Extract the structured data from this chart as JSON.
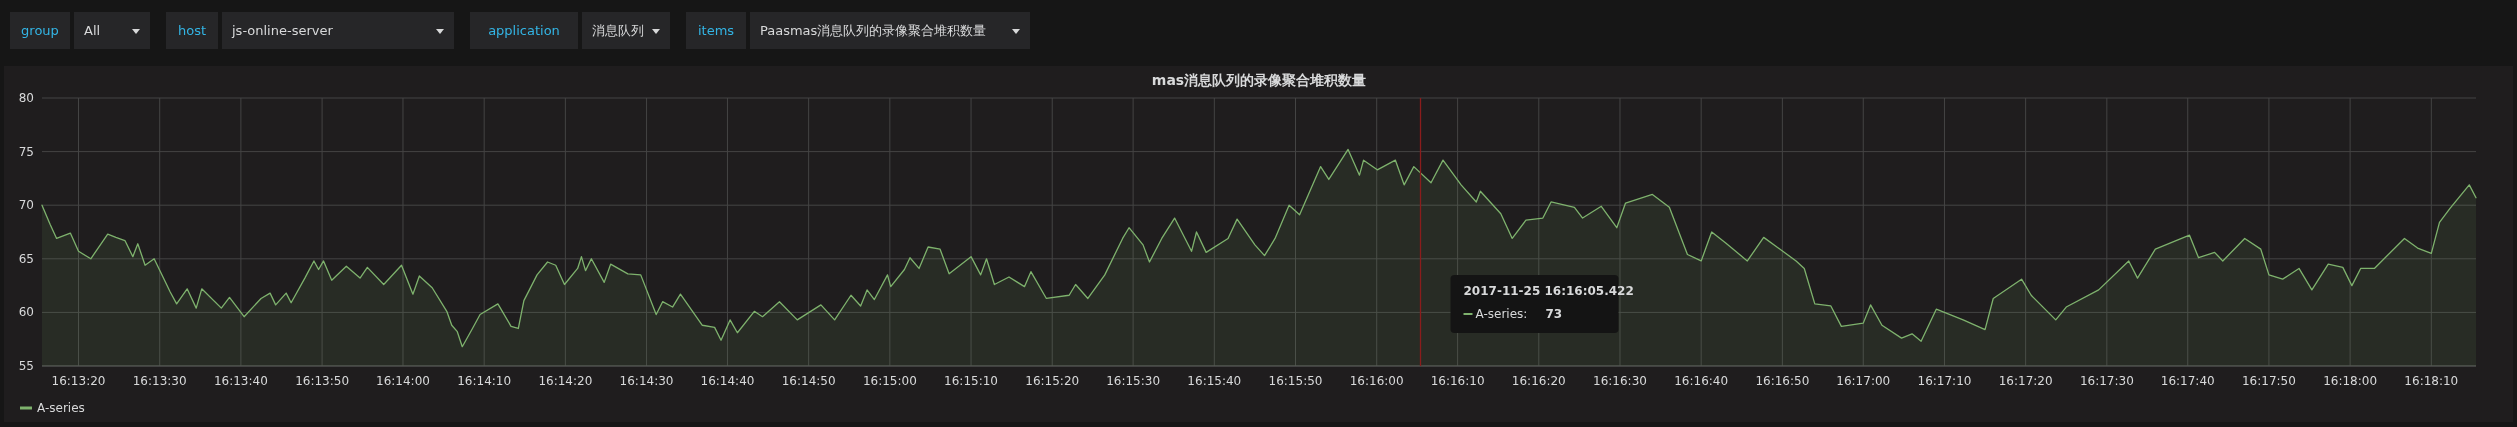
{
  "chart_data": {
    "type": "area",
    "title": "mas消息队列的录像聚合堆积数量",
    "annotations": [
      "group",
      "All",
      "host",
      "js-online-server",
      "application",
      "消息队列",
      "items",
      "Paasmas消息队列的录像聚合堆积数量",
      "2017-11-25 16:16:05.422",
      "A-series:",
      "73"
    ],
    "xlim": [
      16.22097,
      16.30431
    ],
    "xticks": [
      {
        "value": 16.22222,
        "label": "16:13:20"
      },
      {
        "value": 16.225,
        "label": "16:13:30"
      },
      {
        "value": 16.22778,
        "label": "16:13:40"
      },
      {
        "value": 16.23056,
        "label": "16:13:50"
      },
      {
        "value": 16.23333,
        "label": "16:14:00"
      },
      {
        "value": 16.23611,
        "label": "16:14:10"
      },
      {
        "value": 16.23889,
        "label": "16:14:20"
      },
      {
        "value": 16.24167,
        "label": "16:14:30"
      },
      {
        "value": 16.24444,
        "label": "16:14:40"
      },
      {
        "value": 16.24722,
        "label": "16:14:50"
      },
      {
        "value": 16.25,
        "label": "16:15:00"
      },
      {
        "value": 16.25278,
        "label": "16:15:10"
      },
      {
        "value": 16.25556,
        "label": "16:15:20"
      },
      {
        "value": 16.25833,
        "label": "16:15:30"
      },
      {
        "value": 16.26111,
        "label": "16:15:40"
      },
      {
        "value": 16.26389,
        "label": "16:15:50"
      },
      {
        "value": 16.26667,
        "label": "16:16:00"
      },
      {
        "value": 16.26944,
        "label": "16:16:10"
      },
      {
        "value": 16.27222,
        "label": "16:16:20"
      },
      {
        "value": 16.275,
        "label": "16:16:30"
      },
      {
        "value": 16.27778,
        "label": "16:16:40"
      },
      {
        "value": 16.28056,
        "label": "16:16:50"
      },
      {
        "value": 16.28333,
        "label": "16:17:00"
      },
      {
        "value": 16.28611,
        "label": "16:17:10"
      },
      {
        "value": 16.28889,
        "label": "16:17:20"
      },
      {
        "value": 16.29167,
        "label": "16:17:30"
      },
      {
        "value": 16.29444,
        "label": "16:17:40"
      },
      {
        "value": 16.29722,
        "label": "16:17:50"
      },
      {
        "value": 16.3,
        "label": "16:18:00"
      },
      {
        "value": 16.30278,
        "label": "16:18:10"
      }
    ],
    "ylim": [
      55,
      80
    ],
    "yticks": [
      55,
      60,
      65,
      70,
      75,
      80
    ],
    "grid": true,
    "legend": "bottom",
    "ref_lines": [
      {
        "axis": "x",
        "value": 16.26817,
        "color": "#8b1c1c"
      }
    ],
    "series": [
      {
        "name": "A-series",
        "color": "#7eb26d",
        "x": [
          16.22097,
          16.22125,
          16.22147,
          16.22194,
          16.22222,
          16.22264,
          16.22322,
          16.2235,
          16.22381,
          16.22408,
          16.22425,
          16.2245,
          16.22481,
          16.22536,
          16.22558,
          16.22594,
          16.22625,
          16.22644,
          16.22711,
          16.22739,
          16.22789,
          16.22847,
          16.22878,
          16.22897,
          16.22933,
          16.2295,
          16.22997,
          16.23028,
          16.23044,
          16.23061,
          16.23089,
          16.23139,
          16.23186,
          16.23211,
          16.23267,
          16.23328,
          16.23367,
          16.23389,
          16.23433,
          16.23483,
          16.235,
          16.23519,
          16.23536,
          16.23569,
          16.23597,
          16.23658,
          16.23703,
          16.23728,
          16.23747,
          16.23792,
          16.23828,
          16.23856,
          16.23886,
          16.23931,
          16.23944,
          16.23958,
          16.23978,
          16.24022,
          16.24044,
          16.24103,
          16.24147,
          16.242,
          16.24222,
          16.24256,
          16.24283,
          16.24358,
          16.244,
          16.24422,
          16.24453,
          16.24478,
          16.24536,
          16.24564,
          16.24622,
          16.24683,
          16.24764,
          16.24811,
          16.24867,
          16.249,
          16.24922,
          16.24947,
          16.24992,
          16.25003,
          16.2505,
          16.25069,
          16.251,
          16.25131,
          16.25172,
          16.25203,
          16.25278,
          16.25311,
          16.25331,
          16.25358,
          16.25408,
          16.25461,
          16.25483,
          16.25536,
          16.25614,
          16.25636,
          16.25678,
          16.25736,
          16.25797,
          16.25819,
          16.25867,
          16.25889,
          16.25931,
          16.25975,
          16.26033,
          16.2605,
          16.26083,
          16.26158,
          16.26189,
          16.2625,
          16.26283,
          16.26319,
          16.26367,
          16.26403,
          16.26475,
          16.26503,
          16.26569,
          16.26608,
          16.26622,
          16.26669,
          16.26731,
          16.26761,
          16.26794,
          16.26853,
          16.26894,
          16.26956,
          16.27008,
          16.27022,
          16.27092,
          16.27131,
          16.27178,
          16.27236,
          16.27264,
          16.27344,
          16.27372,
          16.27436,
          16.27489,
          16.27519,
          16.27611,
          16.27669,
          16.27731,
          16.27778,
          16.27814,
          16.27861,
          16.27936,
          16.27992,
          16.28103,
          16.28131,
          16.28167,
          16.28222,
          16.28258,
          16.28333,
          16.28358,
          16.28397,
          16.28464,
          16.285,
          16.28531,
          16.28583,
          16.28675,
          16.2875,
          16.28778,
          16.28875,
          16.28908,
          16.28992,
          16.29028,
          16.29139,
          16.29242,
          16.29272,
          16.29333,
          16.2945,
          16.29481,
          16.29536,
          16.29564,
          16.29639,
          16.29694,
          16.29722,
          16.29769,
          16.29825,
          16.29869,
          16.29925,
          16.29975,
          16.30006,
          16.30036,
          16.30083,
          16.30186,
          16.30231,
          16.30278,
          16.30306,
          16.30342,
          16.30408,
          16.30431
        ],
        "values": [
          70.0,
          68.2,
          66.9,
          67.4,
          65.7,
          65.0,
          67.3,
          67.0,
          66.7,
          65.2,
          66.4,
          64.4,
          65.0,
          61.9,
          60.8,
          62.2,
          60.4,
          62.2,
          60.4,
          61.4,
          59.6,
          61.3,
          61.8,
          60.7,
          61.8,
          60.9,
          63.2,
          64.8,
          64.0,
          64.8,
          63.0,
          64.3,
          63.2,
          64.2,
          62.6,
          64.4,
          61.7,
          63.4,
          62.3,
          60.1,
          58.8,
          58.2,
          56.8,
          58.4,
          59.8,
          60.8,
          58.7,
          58.5,
          61.1,
          63.5,
          64.7,
          64.4,
          62.6,
          64.1,
          65.2,
          63.9,
          65.0,
          62.8,
          64.5,
          63.6,
          63.5,
          59.8,
          61.0,
          60.5,
          61.7,
          58.8,
          58.6,
          57.4,
          59.3,
          58.1,
          60.1,
          59.6,
          61.0,
          59.3,
          60.7,
          59.3,
          61.6,
          60.6,
          62.1,
          61.2,
          63.5,
          62.4,
          64.0,
          65.1,
          64.1,
          66.1,
          65.9,
          63.6,
          65.2,
          63.5,
          65.0,
          62.6,
          63.3,
          62.4,
          63.8,
          61.3,
          61.6,
          62.6,
          61.3,
          63.5,
          66.9,
          67.9,
          66.3,
          64.7,
          66.9,
          68.8,
          65.7,
          67.5,
          65.6,
          66.9,
          68.7,
          66.3,
          65.3,
          66.9,
          70.0,
          69.1,
          73.6,
          72.4,
          75.2,
          72.8,
          74.2,
          73.3,
          74.2,
          71.9,
          73.6,
          72.1,
          74.2,
          71.9,
          70.3,
          71.3,
          69.2,
          66.9,
          68.6,
          68.8,
          70.3,
          69.8,
          68.8,
          69.9,
          67.9,
          70.2,
          71.0,
          69.8,
          65.4,
          64.8,
          67.5,
          66.5,
          64.8,
          67.0,
          64.8,
          64.1,
          60.8,
          60.6,
          58.7,
          59.0,
          60.7,
          58.8,
          57.6,
          58.0,
          57.3,
          60.3,
          59.3,
          58.4,
          61.3,
          63.1,
          61.6,
          59.3,
          60.5,
          62.1,
          64.8,
          63.2,
          65.9,
          67.2,
          65.1,
          65.6,
          64.8,
          66.9,
          65.9,
          63.5,
          63.1,
          64.1,
          62.1,
          64.5,
          64.2,
          62.5,
          64.1,
          64.1,
          66.9,
          66.0,
          65.5,
          68.4,
          69.7,
          71.9,
          70.7
        ]
      }
    ]
  }
}
